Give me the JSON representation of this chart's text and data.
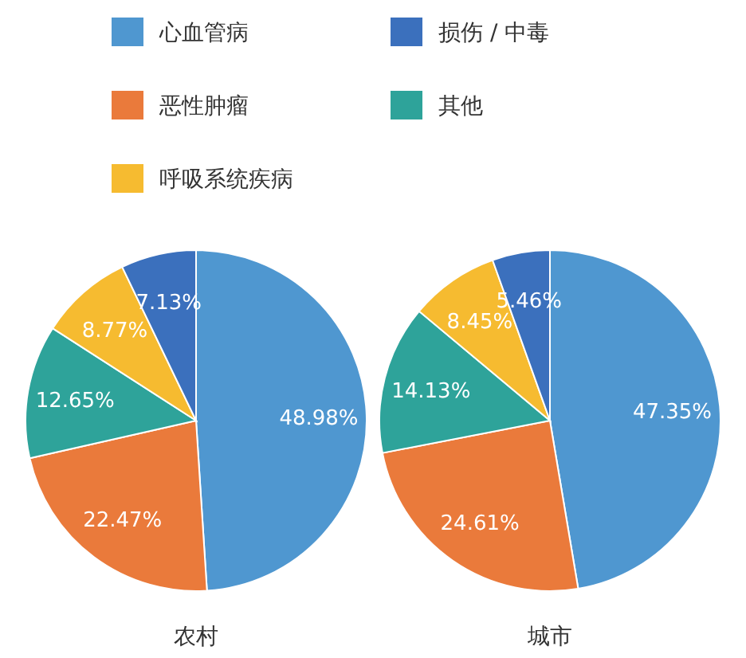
{
  "chart_data": [
    {
      "type": "pie",
      "title": "农村",
      "categories": [
        "心血管病",
        "恶性肿瘤",
        "其他",
        "呼吸系统疾病",
        "损伤 / 中毒"
      ],
      "values": [
        48.98,
        22.47,
        12.65,
        8.77,
        7.13
      ],
      "value_labels": [
        "48.98%",
        "22.47%",
        "12.65%",
        "8.77%",
        "7.13%"
      ],
      "colors": [
        "#4f97d0",
        "#ea7a3b",
        "#2ea39a",
        "#f6bb30",
        "#3b70bd"
      ],
      "legend": "top"
    },
    {
      "type": "pie",
      "title": "城市",
      "categories": [
        null,
        null,
        null,
        null,
        null
      ],
      "values": [
        47.35,
        24.61,
        14.13,
        8.45,
        5.46
      ],
      "value_labels": [
        "47.35%",
        "24.61%",
        "14.13%",
        "8.45%",
        "5.46%"
      ],
      "colors": [
        "#4f97d0",
        "#ea7a3b",
        "#2ea39a",
        "#f6bb30",
        "#3b70bd"
      ]
    }
  ]
}
